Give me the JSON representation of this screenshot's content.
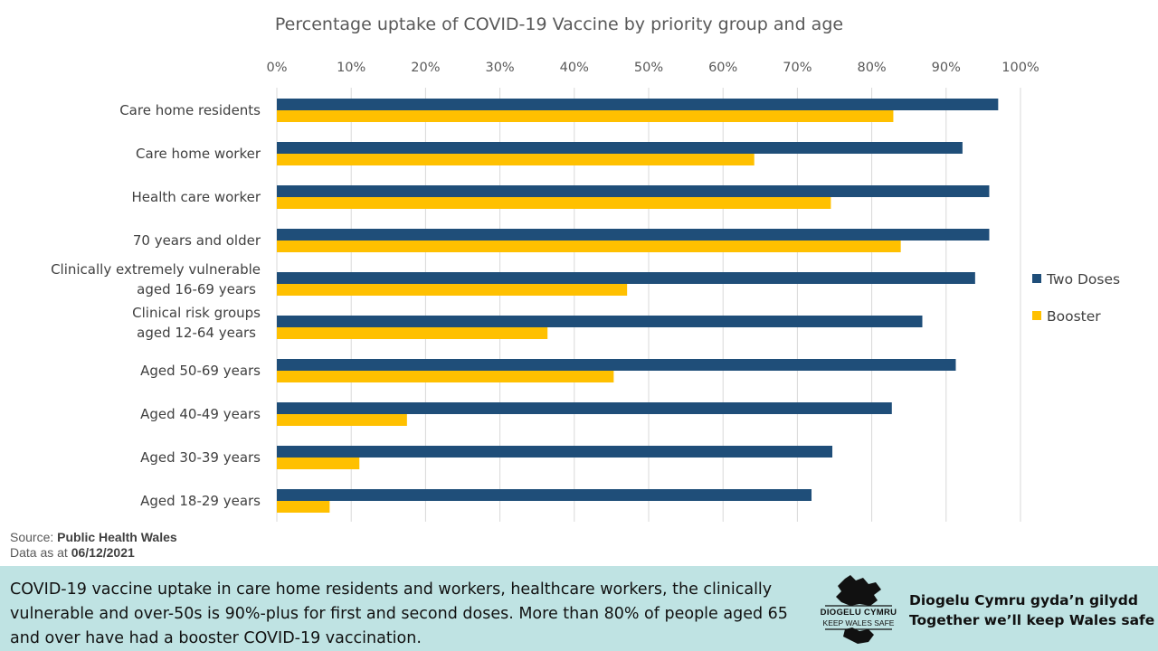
{
  "chart_data": {
    "type": "bar",
    "orientation": "horizontal",
    "title": "Percentage uptake of COVID-19 Vaccine by priority group and age",
    "categories": [
      [
        "Care home residents"
      ],
      [
        "Care home worker"
      ],
      [
        "Health care worker"
      ],
      [
        "70 years and older"
      ],
      [
        "Clinically extremely vulnerable",
        "aged 16-69 years"
      ],
      [
        "Clinical risk groups",
        "aged 12-64 years"
      ],
      [
        "Aged 50-69 years"
      ],
      [
        "Aged 40-49 years"
      ],
      [
        "Aged 30-39 years"
      ],
      [
        "Aged 18-29 years"
      ]
    ],
    "series": [
      {
        "name": "Two Doses",
        "color": "#1f4e79",
        "values": [
          97.0,
          92.2,
          95.8,
          95.8,
          93.9,
          86.8,
          91.3,
          82.7,
          74.7,
          71.9
        ]
      },
      {
        "name": "Booster",
        "color": "#ffc000",
        "values": [
          82.9,
          64.2,
          74.5,
          83.9,
          47.1,
          36.4,
          45.3,
          17.5,
          11.1,
          7.1
        ]
      }
    ],
    "x_ticks": [
      "0%",
      "10%",
      "20%",
      "30%",
      "40%",
      "50%",
      "60%",
      "70%",
      "80%",
      "90%",
      "100%"
    ],
    "xlim": [
      0,
      100
    ],
    "grid": true,
    "legend_position": "right"
  },
  "source": {
    "label": "Source:",
    "name": "Public Health Wales",
    "date_label": "Data as at",
    "date": "06/12/2021"
  },
  "footer": {
    "text": "COVID-19 vaccine uptake in care home residents and workers, healthcare workers, the clinically vulnerable and over-50s is 90%-plus for first and second doses. More than 80% of people aged 65 and over have had a booster COVID-19 vaccination.",
    "logo_line1": "DIOGELU CYMRU",
    "logo_line2": "KEEP WALES SAFE",
    "slogan_line1": "Diogelu Cymru gyda’n gilydd",
    "slogan_line2": "Together we’ll keep Wales safe"
  }
}
